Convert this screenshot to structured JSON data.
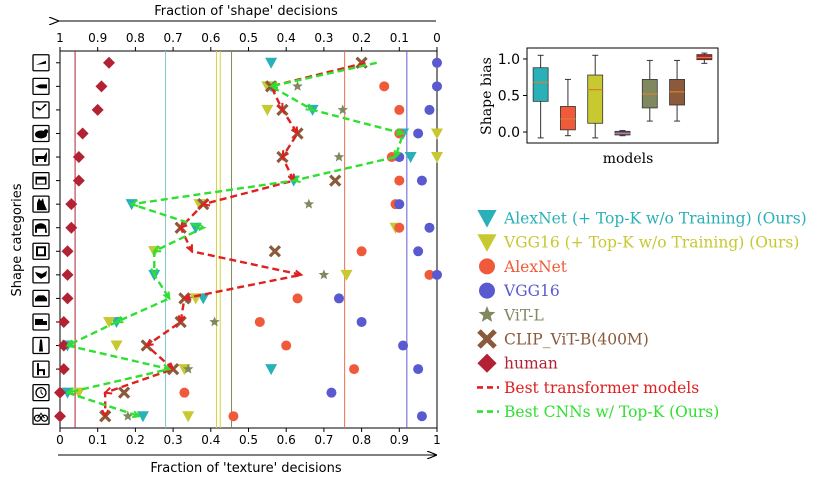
{
  "chart_data": [
    {
      "type": "scatter",
      "title": "",
      "xlabel_top": "Fraction of 'shape' decisions",
      "xlabel_bottom": "Fraction of 'texture' decisions",
      "ylabel": "Shape categories",
      "xlim": [
        0,
        1
      ],
      "x_ticks_bottom": [
        "0",
        "0.1",
        "0.2",
        "0.3",
        "0.4",
        "0.5",
        "0.6",
        "0.7",
        "0.8",
        "0.9",
        "1"
      ],
      "x_ticks_top": [
        "1",
        "0.9",
        "0.8",
        "0.7",
        "0.6",
        "0.5",
        "0.4",
        "0.3",
        "0.2",
        "0.1",
        "0"
      ],
      "categories": [
        "knife",
        "bottle",
        "airplane",
        "bear",
        "dog",
        "oven",
        "cat",
        "elephant",
        "clock",
        "bird",
        "car",
        "truck",
        "keyboard",
        "chair",
        "boat",
        "bicycle"
      ],
      "vlines": [
        {
          "color": "#b22234",
          "x": 0.04
        },
        {
          "color": "#7ec8c8",
          "x": 0.28
        },
        {
          "color": "#d8d040",
          "x": 0.415
        },
        {
          "color": "#d8d040",
          "x": 0.425
        },
        {
          "color": "#888850",
          "x": 0.455
        },
        {
          "color": "#e87050",
          "x": 0.755
        },
        {
          "color": "#6060d0",
          "x": 0.92
        }
      ],
      "series": [
        {
          "name": "AlexNet (+ Top-K w/o Training) (Ours)",
          "marker": "triangle-down",
          "color": "#2ab0b8",
          "values": [
            0.56,
            0.56,
            0.67,
            0.91,
            0.93,
            0.62,
            0.19,
            0.36,
            0.25,
            0.25,
            0.38,
            0.15,
            0.02,
            0.56,
            0.02,
            0.22
          ]
        },
        {
          "name": "VGG16 (+ Top-K w/o Training) (Ours)",
          "marker": "triangle-down",
          "color": "#c8c830",
          "values": [
            null,
            0.55,
            0.55,
            1.0,
            1.0,
            null,
            0.37,
            0.89,
            0.25,
            0.76,
            0.36,
            0.13,
            0.15,
            0.33,
            0.05,
            0.34
          ]
        },
        {
          "name": "AlexNet",
          "marker": "circle",
          "color": "#f05a3a",
          "values": [
            null,
            0.86,
            0.9,
            0.9,
            0.88,
            0.9,
            0.89,
            0.9,
            0.8,
            0.98,
            0.63,
            0.53,
            0.6,
            0.78,
            0.33,
            0.46
          ]
        },
        {
          "name": "VGG16",
          "marker": "circle",
          "color": "#5a5ad0",
          "values": [
            1.0,
            1.0,
            0.98,
            0.95,
            0.9,
            0.96,
            0.9,
            0.98,
            0.95,
            1.0,
            0.74,
            0.8,
            0.91,
            0.95,
            0.72,
            0.96
          ]
        },
        {
          "name": "ViT-L",
          "marker": "star",
          "color": "#808860",
          "values": [
            null,
            0.63,
            0.75,
            null,
            0.74,
            null,
            0.66,
            null,
            null,
            0.7,
            0.34,
            0.41,
            null,
            0.34,
            null,
            0.18
          ]
        },
        {
          "name": "CLIP_ViT-B(400M)",
          "marker": "x",
          "color": "#8a5a3a",
          "values": [
            0.8,
            0.56,
            0.59,
            0.63,
            0.59,
            0.73,
            0.38,
            0.32,
            0.57,
            null,
            0.33,
            0.32,
            0.23,
            0.3,
            0.17,
            0.12
          ]
        },
        {
          "name": "human",
          "marker": "diamond",
          "color": "#b22234",
          "values": [
            0.13,
            0.11,
            0.1,
            0.06,
            0.05,
            0.05,
            0.03,
            0.03,
            0.02,
            0.02,
            0.02,
            0.01,
            0.01,
            0.01,
            0.0,
            0.0
          ]
        },
        {
          "name": "Best transformer models",
          "marker": "dashed-line",
          "color": "#e02020",
          "values": [
            0.81,
            0.56,
            0.59,
            0.63,
            0.59,
            0.62,
            0.38,
            0.32,
            0.35,
            0.64,
            0.33,
            0.32,
            0.23,
            0.3,
            0.12,
            0.12
          ]
        },
        {
          "name": "Best CNNs w/ Top-K (Ours)",
          "marker": "dashed-line",
          "color": "#30e030",
          "values": [
            0.84,
            0.56,
            0.67,
            0.91,
            0.89,
            0.62,
            0.19,
            0.38,
            0.25,
            0.25,
            0.29,
            0.15,
            0.02,
            0.29,
            0.02,
            0.21
          ]
        }
      ]
    },
    {
      "type": "box",
      "title": "",
      "xlabel": "models",
      "ylabel": "Shape bias",
      "ylim": [
        -0.15,
        1.15
      ],
      "y_ticks": [
        "0.0",
        "0.5",
        "1.0"
      ],
      "boxes": [
        {
          "color": "#2ab0b8",
          "min": -0.08,
          "q1": 0.42,
          "median": 0.68,
          "q3": 0.88,
          "max": 1.05
        },
        {
          "color": "#f05a3a",
          "min": -0.05,
          "q1": 0.03,
          "median": 0.18,
          "q3": 0.35,
          "max": 0.72
        },
        {
          "color": "#c8c830",
          "min": -0.08,
          "q1": 0.12,
          "median": 0.58,
          "q3": 0.78,
          "max": 1.05
        },
        {
          "color": "#5a5ad0",
          "min": -0.05,
          "q1": -0.04,
          "median": -0.02,
          "q3": 0.01,
          "max": 0.02
        },
        {
          "color": "#808860",
          "min": 0.15,
          "q1": 0.33,
          "median": 0.52,
          "q3": 0.72,
          "max": 0.98
        },
        {
          "color": "#8a5a3a",
          "min": 0.15,
          "q1": 0.37,
          "median": 0.55,
          "q3": 0.72,
          "max": 0.98
        },
        {
          "color": "#b22234",
          "min": 0.94,
          "q1": 0.99,
          "median": 1.02,
          "q3": 1.06,
          "max": 1.08
        }
      ]
    }
  ]
}
